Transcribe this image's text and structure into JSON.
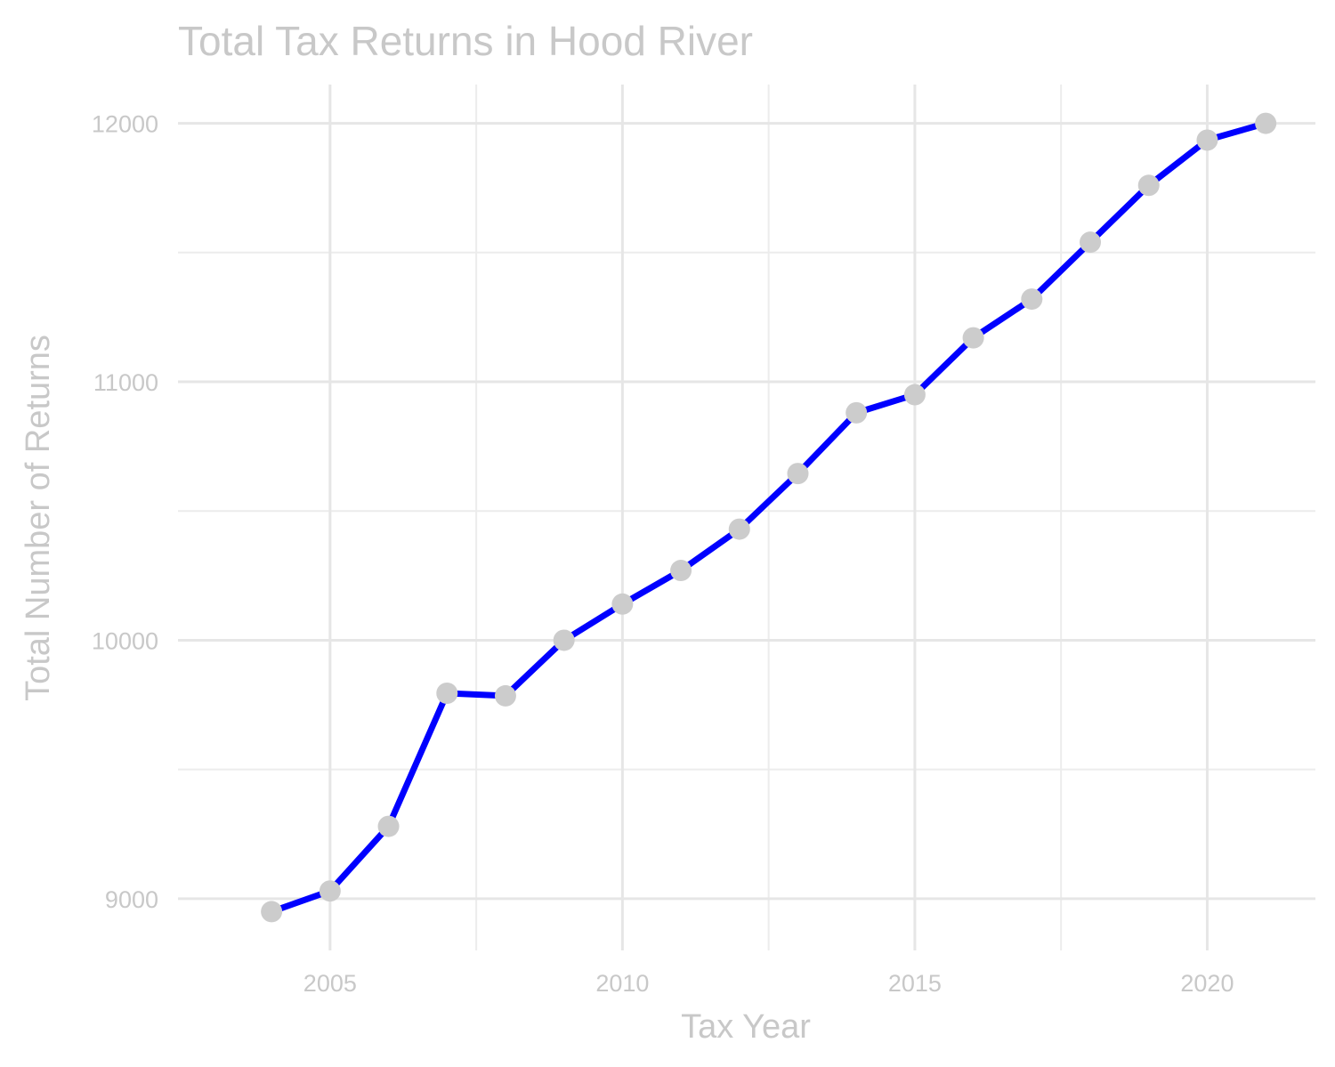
{
  "chart_data": {
    "type": "line",
    "title": "Total Tax Returns in Hood River",
    "xlabel": "Tax Year",
    "ylabel": "Total Number of Returns",
    "x": [
      2004,
      2005,
      2006,
      2007,
      2008,
      2009,
      2010,
      2011,
      2012,
      2013,
      2014,
      2015,
      2016,
      2017,
      2018,
      2019,
      2020,
      2021
    ],
    "series": [
      {
        "name": "Total Number of Returns",
        "values": [
          8950,
          9030,
          9280,
          9795,
          9785,
          10000,
          10140,
          10270,
          10430,
          10645,
          10880,
          10950,
          11170,
          11320,
          11540,
          11760,
          11935,
          12000
        ]
      }
    ],
    "xlim": [
      2002.4,
      2021.85
    ],
    "ylim": [
      8800,
      12150
    ],
    "x_ticks": [
      2005,
      2010,
      2015,
      2020
    ],
    "x_tick_labels": [
      "2005",
      "2010",
      "2015",
      "2020"
    ],
    "x_minor_ticks": [
      2007.5,
      2012.5,
      2017.5
    ],
    "y_ticks": [
      9000,
      10000,
      11000,
      12000
    ],
    "y_tick_labels": [
      "9000",
      "10000",
      "11000",
      "12000"
    ],
    "y_minor_ticks": [
      9500,
      10500,
      11500
    ],
    "grid": true,
    "legend": "none",
    "colors": {
      "line": "#0000ff",
      "point": "#cccccc",
      "text": "#c8c8c8",
      "grid_major": "#e6e6e6",
      "grid_minor": "#ececec"
    }
  }
}
